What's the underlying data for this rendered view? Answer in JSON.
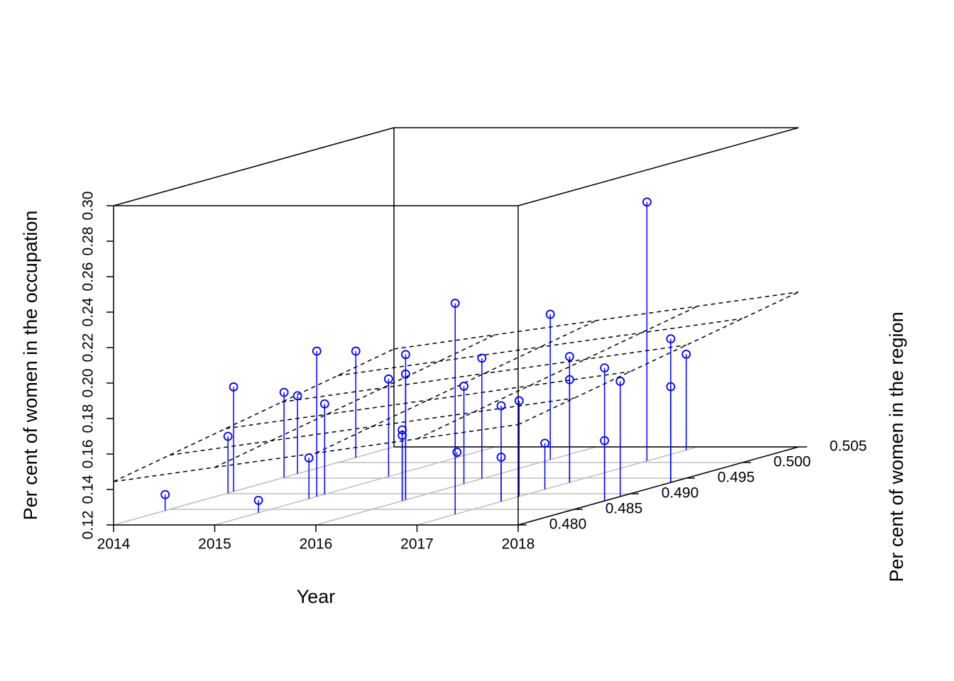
{
  "chart_data": {
    "type": "scatter3d",
    "xlabel": "Year",
    "ylabel": "Per cent of women in the region",
    "zlabel": "Per cent of women in the occupation",
    "color": "#0000ff",
    "plane": true,
    "grid": true,
    "xlim": [
      2014,
      2018
    ],
    "xticks": [
      2014,
      2015,
      2016,
      2017,
      2018
    ],
    "ylim": [
      0.48,
      0.505
    ],
    "yticks": [
      {
        "value": 0.48,
        "label": "0.480"
      },
      0.485,
      {
        "value": 0.49,
        "label": "0.490"
      },
      0.495,
      {
        "value": 0.5,
        "label": "0.500"
      },
      0.505
    ],
    "zlim": [
      0.12,
      0.3
    ],
    "zticks": [
      0.12,
      0.14,
      0.16,
      0.18,
      {
        "value": 0.2,
        "label": "0.20"
      },
      0.22,
      0.24,
      0.26,
      0.28,
      {
        "value": 0.3,
        "label": "0.30"
      }
    ],
    "x": [
      2014,
      2014,
      2014,
      2015,
      2014,
      2014,
      2015,
      2015,
      2015,
      2014,
      2015,
      2016,
      2016,
      2016,
      2016,
      2017,
      2015,
      2016,
      2016,
      2017,
      2017,
      2017,
      2017,
      2016,
      2017,
      2017,
      2018,
      2018,
      2018,
      2017,
      2018,
      2018,
      2017
    ],
    "y": [
      0.4846,
      0.4902,
      0.4907,
      0.4839,
      0.4952,
      0.4964,
      0.4884,
      0.4891,
      0.4898,
      0.5016,
      0.4955,
      0.4877,
      0.4877,
      0.488,
      0.488,
      0.4834,
      0.5016,
      0.4932,
      0.4948,
      0.4875,
      0.4875,
      0.4914,
      0.4891,
      0.5009,
      0.4936,
      0.4936,
      0.4877,
      0.4877,
      0.4891,
      0.5005,
      0.4936,
      0.4936,
      0.504
    ],
    "z": [
      0.129,
      0.152,
      0.179,
      0.127,
      0.168,
      0.164,
      0.143,
      0.202,
      0.171,
      0.18,
      0.175,
      0.157,
      0.16,
      0.202,
      0.191,
      0.239,
      0.123,
      0.175,
      0.188,
      0.145,
      0.174,
      0.146,
      0.174,
      0.202,
      0.178,
      0.191,
      0.154,
      0.195,
      0.185,
      0.266,
      0.174,
      0.201,
      0.174
    ]
  }
}
